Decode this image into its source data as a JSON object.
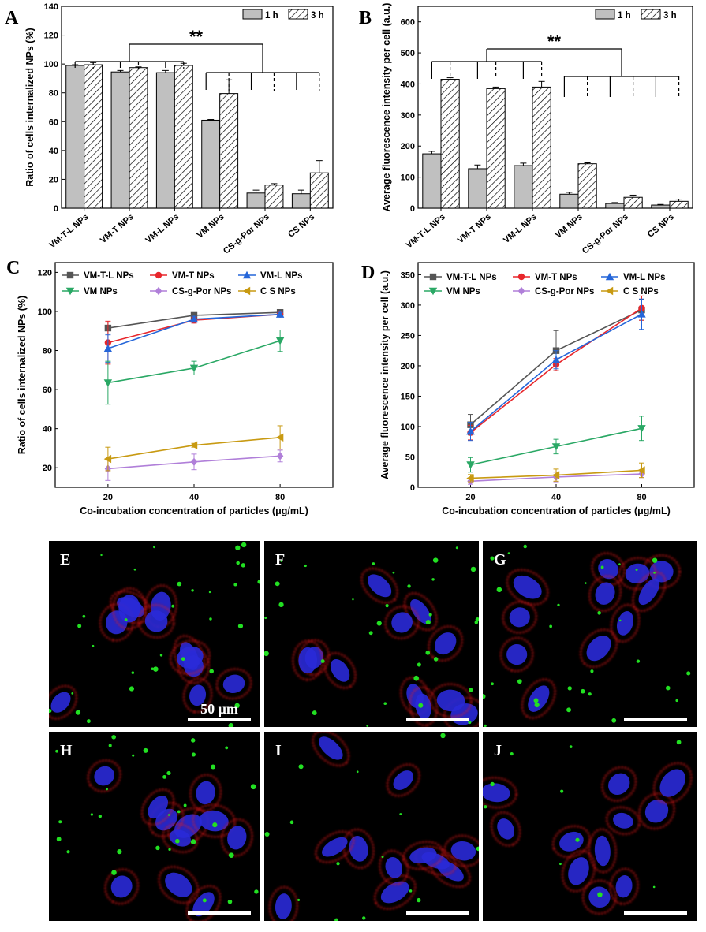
{
  "chart_data": [
    {
      "panel": "A",
      "type": "bar",
      "ylabel": "Ratio of cells internalized NPs (%)",
      "ylim": [
        0,
        140
      ],
      "yticks": [
        0,
        20,
        40,
        60,
        80,
        100,
        120,
        140
      ],
      "categories": [
        "VM-T-L NPs",
        "VM-T NPs",
        "VM-L NPs",
        "VM NPs",
        "CS-g-Por NPs",
        "CS NPs"
      ],
      "series": [
        {
          "name": "1 h",
          "values": [
            99,
            94.5,
            94,
            61,
            10.5,
            10
          ],
          "errors": [
            0.5,
            1,
            1.5,
            0.5,
            2,
            2.5
          ],
          "fill": "#c0c0c0"
        },
        {
          "name": "3 h",
          "values": [
            99.5,
            97.5,
            99,
            79.5,
            16,
            24.5
          ],
          "errors": [
            1.5,
            0.5,
            1.5,
            9.5,
            1,
            8.5
          ],
          "fill": "hatch"
        }
      ],
      "significance": "**",
      "legend_position": "top-right"
    },
    {
      "panel": "B",
      "type": "bar",
      "ylabel": "Average fluorescence intensity per cell (a.u.)",
      "ylim": [
        0,
        650
      ],
      "yticks": [
        0,
        100,
        200,
        300,
        400,
        500,
        600
      ],
      "categories": [
        "VM-T-L NPs",
        "VM-T NPs",
        "VM-L NPs",
        "VM NPs",
        "CS-g-Por NPs",
        "CS NPs"
      ],
      "series": [
        {
          "name": "1 h",
          "values": [
            175,
            127,
            137,
            45,
            15,
            10
          ],
          "errors": [
            8,
            12,
            8,
            6,
            3,
            2
          ],
          "fill": "#c0c0c0"
        },
        {
          "name": "3 h",
          "values": [
            415,
            385,
            390,
            143,
            35,
            22
          ],
          "errors": [
            5,
            5,
            18,
            3,
            7,
            7
          ],
          "fill": "hatch"
        }
      ],
      "significance": "**",
      "legend_position": "top-right"
    },
    {
      "panel": "C",
      "type": "line",
      "xlabel": "Co-incubation concentration of particles (μg/mL)",
      "ylabel": "Ratio of cells internalized NPs (%)",
      "x": [
        20,
        40,
        80
      ],
      "ylim": [
        10,
        125
      ],
      "yticks": [
        20,
        40,
        60,
        80,
        100,
        120
      ],
      "series": [
        {
          "name": "VM-T-L NPs",
          "values": [
            91.5,
            98,
            99.5
          ],
          "errors": [
            3,
            1,
            0.5
          ],
          "color": "#555555",
          "marker": "square"
        },
        {
          "name": "VM-T NPs",
          "values": [
            84,
            95.5,
            98.5
          ],
          "errors": [
            11,
            1.5,
            1
          ],
          "color": "#e8262b",
          "marker": "circle"
        },
        {
          "name": "VM-L NPs",
          "values": [
            81,
            96,
            98.5
          ],
          "errors": [
            7,
            1.5,
            1
          ],
          "color": "#2566d9",
          "marker": "triangle-up"
        },
        {
          "name": "VM NPs",
          "values": [
            63.5,
            71,
            85
          ],
          "errors": [
            11,
            3.5,
            5.5
          ],
          "color": "#2aa865",
          "marker": "triangle-down"
        },
        {
          "name": "CS-g-Por NPs",
          "values": [
            19.5,
            23,
            26
          ],
          "errors": [
            6,
            4,
            3
          ],
          "color": "#b07fd9",
          "marker": "diamond"
        },
        {
          "name": "C S NPs",
          "values": [
            24.5,
            31.5,
            35.5
          ],
          "errors": [
            6,
            1,
            6
          ],
          "color": "#c89a12",
          "marker": "triangle-left"
        }
      ],
      "legend_position": "top"
    },
    {
      "panel": "D",
      "type": "line",
      "xlabel": "Co-incubation concentration of particles (μg/mL)",
      "ylabel": "Average fluorescence intensity per cell (a.u.)",
      "x": [
        20,
        40,
        80
      ],
      "ylim": [
        0,
        370
      ],
      "yticks": [
        0,
        50,
        100,
        150,
        200,
        250,
        300,
        350
      ],
      "series": [
        {
          "name": "VM-T-L NPs",
          "values": [
            103,
            225,
            292
          ],
          "errors": [
            17,
            33,
            17
          ],
          "color": "#555555",
          "marker": "square"
        },
        {
          "name": "VM-T NPs",
          "values": [
            90,
            202,
            295
          ],
          "errors": [
            12,
            10,
            20
          ],
          "color": "#e8262b",
          "marker": "circle"
        },
        {
          "name": "VM-L NPs",
          "values": [
            92,
            210,
            285
          ],
          "errors": [
            15,
            15,
            25
          ],
          "color": "#2566d9",
          "marker": "triangle-up"
        },
        {
          "name": "VM NPs",
          "values": [
            37,
            67,
            97
          ],
          "errors": [
            12,
            12,
            20
          ],
          "color": "#2aa865",
          "marker": "triangle-down"
        },
        {
          "name": "CS-g-Por NPs",
          "values": [
            10,
            17,
            22
          ],
          "errors": [
            5,
            8,
            6
          ],
          "color": "#b07fd9",
          "marker": "diamond"
        },
        {
          "name": "C S NPs",
          "values": [
            15,
            20,
            28
          ],
          "errors": [
            6,
            10,
            12
          ],
          "color": "#c89a12",
          "marker": "triangle-left"
        }
      ],
      "legend_position": "top"
    }
  ],
  "micrographs": {
    "panels": [
      "E",
      "F",
      "G",
      "H",
      "I",
      "J"
    ],
    "scale_bar_label": "50 μm",
    "colors": {
      "nucleus": "#2a2ad8",
      "membrane": "#e01818",
      "particles": "#22e022"
    }
  }
}
